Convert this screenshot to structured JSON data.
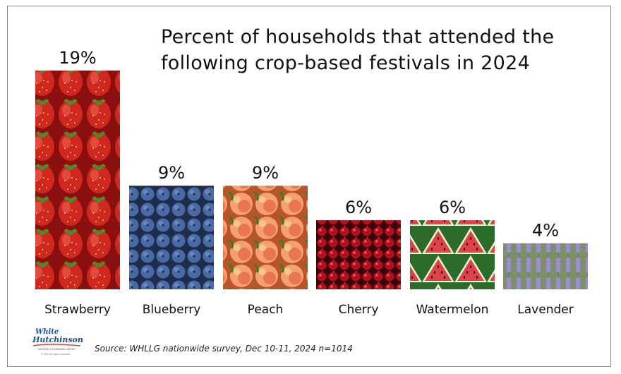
{
  "title_line1": "Percent of households that attended the",
  "title_line2": "following crop-based festivals in 2024",
  "source": "Source: WHLLG nationwide survey, Dec 10-11, 2024  n=1014",
  "logo": {
    "line1": "White",
    "line2": "Hutchinson",
    "tagline": "LEISURE & LEARNING GROUP",
    "copyright": "©2025 all rights reserved"
  },
  "chart_data": {
    "type": "bar",
    "title": "Percent of households that attended the following crop-based festivals in 2024",
    "categories": [
      "Strawberry",
      "Blueberry",
      "Peach",
      "Cherry",
      "Watermelon",
      "Lavender"
    ],
    "values": [
      19,
      9,
      9,
      6,
      6,
      4
    ],
    "value_labels": [
      "19%",
      "9%",
      "9%",
      "6%",
      "6%",
      "4%"
    ],
    "unit": "%",
    "ylim": [
      0,
      19
    ],
    "grid": false,
    "legend": "none",
    "bar_fills": [
      "strawberries",
      "blueberries",
      "peaches",
      "cherries",
      "watermelon slices",
      "lavender"
    ],
    "colors": [
      "#c0392b",
      "#3d5a8a",
      "#f0a070",
      "#a8121c",
      "#e0444c",
      "#9a8ad0"
    ]
  }
}
